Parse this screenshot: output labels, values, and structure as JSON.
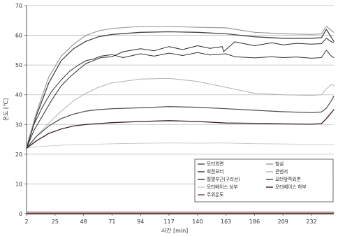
{
  "chart_data": {
    "type": "line",
    "xlabel": "시간 [min]",
    "ylabel": "온도 [℃]",
    "xlim": [
      2,
      250
    ],
    "ylim": [
      0,
      70
    ],
    "x_ticks": [
      2,
      25,
      48,
      71,
      94,
      117,
      140,
      163,
      186,
      209,
      232
    ],
    "y_ticks": [
      0,
      10,
      20,
      30,
      40,
      50,
      60,
      70
    ],
    "grid": "horizontal",
    "legend_position": "bottom-right",
    "series": [
      {
        "name": "모터외면",
        "color": "#444444",
        "width": 1.3,
        "x": [
          2,
          10,
          20,
          30,
          40,
          50,
          60,
          71,
          94,
          117,
          140,
          163,
          186,
          209,
          232,
          240,
          244,
          247,
          250
        ],
        "y": [
          22,
          33,
          44,
          51.5,
          55.5,
          58,
          59.5,
          60.3,
          61,
          61.2,
          61,
          60.5,
          59.5,
          59,
          59,
          59.2,
          62,
          60,
          58
        ]
      },
      {
        "name": "철심",
        "color": "#9a9a9a",
        "width": 1.2,
        "x": [
          2,
          10,
          20,
          30,
          40,
          50,
          60,
          71,
          94,
          117,
          140,
          163,
          186,
          209,
          232,
          240,
          244,
          247,
          250
        ],
        "y": [
          22.5,
          34,
          46,
          53,
          57,
          60,
          61.5,
          62.3,
          63,
          63,
          62.7,
          62.5,
          61,
          60.5,
          60.3,
          60.5,
          63,
          62,
          61
        ]
      },
      {
        "name": "회전모터",
        "color": "#333333",
        "width": 1.0,
        "x": [
          2,
          8,
          15,
          22,
          30,
          37,
          44,
          50,
          56,
          62,
          71,
          80,
          94,
          105,
          117,
          128,
          140,
          150,
          163,
          170,
          186,
          200,
          209,
          220,
          232,
          240,
          244,
          248,
          250
        ],
        "y": [
          22,
          30,
          36,
          41,
          45,
          48,
          50,
          51.5,
          52,
          53,
          53.5,
          52.5,
          53.8,
          53,
          54,
          53.2,
          54.2,
          53.4,
          53.8,
          52.8,
          52.4,
          52.8,
          52.5,
          52.7,
          52.3,
          52.5,
          55,
          53,
          52.5
        ]
      },
      {
        "name": "콘덴서",
        "color": "#b0b0b0",
        "width": 1.0,
        "x": [
          2,
          10,
          20,
          30,
          40,
          50,
          60,
          71,
          94,
          117,
          140,
          163,
          186,
          209,
          232,
          240,
          244,
          248,
          250
        ],
        "y": [
          22,
          26,
          30.5,
          34.5,
          38,
          40.5,
          42.5,
          44,
          45.3,
          45.5,
          44.5,
          42.5,
          40.5,
          40,
          39.8,
          40,
          42,
          43.5,
          43
        ]
      },
      {
        "name": "절열부근(구리선)",
        "color": "#2a2a2a",
        "width": 1.0,
        "x": [
          2,
          8,
          15,
          22,
          30,
          37,
          44,
          50,
          56,
          62,
          71,
          80,
          94,
          105,
          117,
          128,
          140,
          150,
          160,
          161,
          170,
          186,
          200,
          209,
          220,
          232,
          240,
          244,
          248,
          250
        ],
        "y": [
          22,
          28,
          33,
          38,
          43,
          46,
          48.5,
          50.5,
          51.5,
          52.5,
          52.8,
          54.5,
          55.5,
          54.8,
          56.2,
          55.2,
          56.5,
          55.6,
          56.2,
          54.5,
          57.8,
          56.5,
          57.5,
          56.8,
          57.3,
          57,
          57.2,
          59,
          57.8,
          57.5
        ]
      },
      {
        "name": "모터앞쪽외면",
        "color": "#4a4a4a",
        "width": 1.2,
        "x": [
          2,
          10,
          20,
          30,
          40,
          50,
          60,
          71,
          94,
          117,
          140,
          163,
          186,
          209,
          232,
          240,
          244,
          248,
          250
        ],
        "y": [
          22,
          26,
          29.5,
          32,
          33.5,
          34.5,
          35,
          35.3,
          35.6,
          36,
          35.8,
          35.3,
          34.8,
          34.3,
          34,
          34.2,
          35.5,
          38,
          39.5
        ]
      },
      {
        "name": "모터베이스 상부",
        "color": "#c8c8c8",
        "width": 0.9,
        "x": [
          2,
          10,
          20,
          30,
          40,
          60,
          80,
          100,
          120,
          140,
          160,
          180,
          200,
          220,
          240,
          250
        ],
        "y": [
          22,
          22.5,
          22.8,
          23,
          23.2,
          23.4,
          23.6,
          23.7,
          23.8,
          23.7,
          23.8,
          23.6,
          23.5,
          23.4,
          23.3,
          23.3
        ]
      },
      {
        "name": "모터베이스 하부",
        "color": "#3a1f1f",
        "width": 1.3,
        "x": [
          2,
          10,
          20,
          30,
          40,
          50,
          60,
          71,
          94,
          117,
          140,
          163,
          186,
          209,
          232,
          240,
          244,
          248,
          250
        ],
        "y": [
          22,
          24.5,
          27,
          28.5,
          29.5,
          30,
          30.3,
          30.6,
          31,
          31.3,
          31,
          30.5,
          30.4,
          30.2,
          30.1,
          30.3,
          32,
          34,
          35
        ]
      },
      {
        "name": "주위온도",
        "color": "#6b4545",
        "width": 1.0,
        "x": [
          2,
          250
        ],
        "y": [
          0.5,
          0.5
        ]
      }
    ],
    "legend": {
      "rows": [
        [
          {
            "series": 0,
            "label": "모터외면"
          },
          {
            "series": 1,
            "label": "철심"
          }
        ],
        [
          {
            "series": 2,
            "label": "회전모터"
          },
          {
            "series": 3,
            "label": "콘덴서"
          }
        ],
        [
          {
            "series": 4,
            "label": "절열부근(구리선)"
          },
          {
            "series": 5,
            "label": "모터앞쪽외면"
          }
        ],
        [
          {
            "series": 6,
            "label": "모터베이스 상부"
          },
          {
            "series": 7,
            "label": "모터베이스 하부"
          }
        ],
        [
          {
            "series": 8,
            "label": "주위온도"
          }
        ]
      ]
    }
  }
}
